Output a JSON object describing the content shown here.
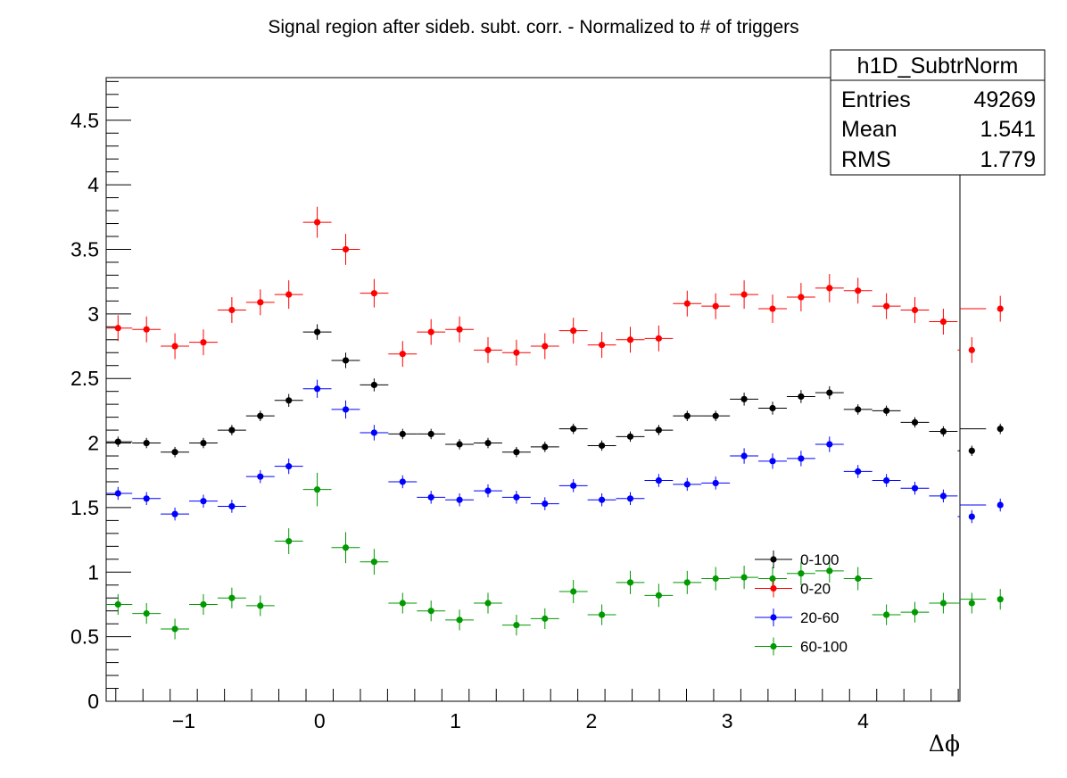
{
  "chart_data": {
    "type": "scatter",
    "title": "Signal region after sideb. subt. corr. - Normalized to # of triggers",
    "xlabel": "Δϕ",
    "ylabel": "",
    "xlim": [
      -1.5708,
      4.7124
    ],
    "ylim": [
      0,
      4.83
    ],
    "x_ticks": [
      -1,
      0,
      1,
      2,
      3,
      4
    ],
    "x_tick_labels": [
      "−1",
      "0",
      "1",
      "2",
      "3",
      "4"
    ],
    "y_ticks": [
      0,
      0.5,
      1,
      1.5,
      2,
      2.5,
      3,
      3.5,
      4,
      4.5
    ],
    "y_tick_labels": [
      "0",
      "0.5",
      "1",
      "1.5",
      "2",
      "2.5",
      "3",
      "3.5",
      "4",
      "4.5"
    ],
    "grid": false,
    "legend_position": "bottom-right",
    "stats_box": {
      "title": "h1D_SubtrNorm",
      "rows": [
        {
          "label": "Entries",
          "value": "49269"
        },
        {
          "label": "Mean",
          "value": "1.541"
        },
        {
          "label": "RMS",
          "value": "1.779"
        }
      ]
    },
    "x": [
      -1.4835,
      -1.274,
      -1.0647,
      -0.8552,
      -0.6458,
      -0.4363,
      -0.2269,
      -0.0175,
      0.192,
      0.4014,
      0.6109,
      0.8203,
      1.0297,
      1.2392,
      1.4486,
      1.6581,
      1.8675,
      2.077,
      2.2864,
      2.4958,
      2.7053,
      2.9147,
      3.1242,
      3.3336,
      3.543,
      3.7525,
      3.9619,
      4.1714,
      4.3808,
      4.5903
    ],
    "bin_half_width": 0.1047,
    "series": [
      {
        "name": "0-100",
        "color": "#000000",
        "values": [
          2.01,
          2.0,
          1.93,
          2.0,
          2.1,
          2.21,
          2.33,
          2.86,
          2.64,
          2.45,
          2.07,
          2.07,
          1.99,
          2.0,
          1.93,
          1.97,
          2.11,
          1.98,
          2.05,
          2.1,
          2.21,
          2.21,
          2.34,
          2.27,
          2.36,
          2.39,
          2.26,
          2.25,
          2.16,
          2.09
        ],
        "errors": [
          0.04,
          0.04,
          0.04,
          0.04,
          0.04,
          0.04,
          0.05,
          0.06,
          0.06,
          0.05,
          0.04,
          0.04,
          0.04,
          0.04,
          0.04,
          0.04,
          0.04,
          0.04,
          0.04,
          0.04,
          0.04,
          0.04,
          0.05,
          0.05,
          0.05,
          0.05,
          0.04,
          0.04,
          0.04,
          0.04
        ],
        "extra": [
          1.94,
          2.11
        ]
      },
      {
        "name": "0-20",
        "color": "#ff0000",
        "values": [
          2.89,
          2.88,
          2.75,
          2.78,
          3.03,
          3.09,
          3.15,
          3.71,
          3.5,
          3.16,
          2.69,
          2.86,
          2.88,
          2.72,
          2.7,
          2.75,
          2.87,
          2.76,
          2.8,
          2.81,
          3.08,
          3.06,
          3.15,
          3.04,
          3.13,
          3.2,
          3.18,
          3.06,
          3.03,
          2.94
        ],
        "errors": [
          0.1,
          0.1,
          0.1,
          0.1,
          0.1,
          0.1,
          0.11,
          0.12,
          0.12,
          0.11,
          0.1,
          0.1,
          0.1,
          0.1,
          0.1,
          0.1,
          0.1,
          0.1,
          0.1,
          0.1,
          0.1,
          0.1,
          0.11,
          0.11,
          0.11,
          0.11,
          0.1,
          0.1,
          0.1,
          0.1
        ],
        "extra": [
          2.72,
          3.04
        ]
      },
      {
        "name": "20-60",
        "color": "#0000ff",
        "values": [
          1.61,
          1.57,
          1.45,
          1.55,
          1.51,
          1.74,
          1.82,
          2.42,
          2.26,
          2.08,
          1.7,
          1.58,
          1.56,
          1.63,
          1.58,
          1.53,
          1.67,
          1.56,
          1.57,
          1.71,
          1.68,
          1.69,
          1.9,
          1.86,
          1.88,
          1.99,
          1.78,
          1.71,
          1.65,
          1.59
        ],
        "errors": [
          0.05,
          0.05,
          0.05,
          0.05,
          0.05,
          0.05,
          0.06,
          0.07,
          0.07,
          0.06,
          0.05,
          0.05,
          0.05,
          0.05,
          0.05,
          0.05,
          0.05,
          0.05,
          0.05,
          0.05,
          0.05,
          0.05,
          0.06,
          0.06,
          0.06,
          0.06,
          0.05,
          0.05,
          0.05,
          0.05
        ],
        "extra": [
          1.43,
          1.52
        ]
      },
      {
        "name": "60-100",
        "color": "#009900",
        "values": [
          0.75,
          0.68,
          0.56,
          0.75,
          0.8,
          0.74,
          1.24,
          1.64,
          1.19,
          1.08,
          0.76,
          0.7,
          0.63,
          0.76,
          0.59,
          0.64,
          0.85,
          0.67,
          0.92,
          0.82,
          0.92,
          0.95,
          0.96,
          0.95,
          0.99,
          1.01,
          0.95,
          0.67,
          0.69,
          0.76
        ],
        "errors": [
          0.08,
          0.08,
          0.08,
          0.08,
          0.08,
          0.08,
          0.1,
          0.13,
          0.12,
          0.1,
          0.08,
          0.08,
          0.08,
          0.08,
          0.08,
          0.08,
          0.09,
          0.08,
          0.09,
          0.09,
          0.09,
          0.09,
          0.09,
          0.09,
          0.09,
          0.09,
          0.09,
          0.08,
          0.08,
          0.08
        ],
        "extra": [
          0.76,
          0.79
        ]
      }
    ]
  }
}
